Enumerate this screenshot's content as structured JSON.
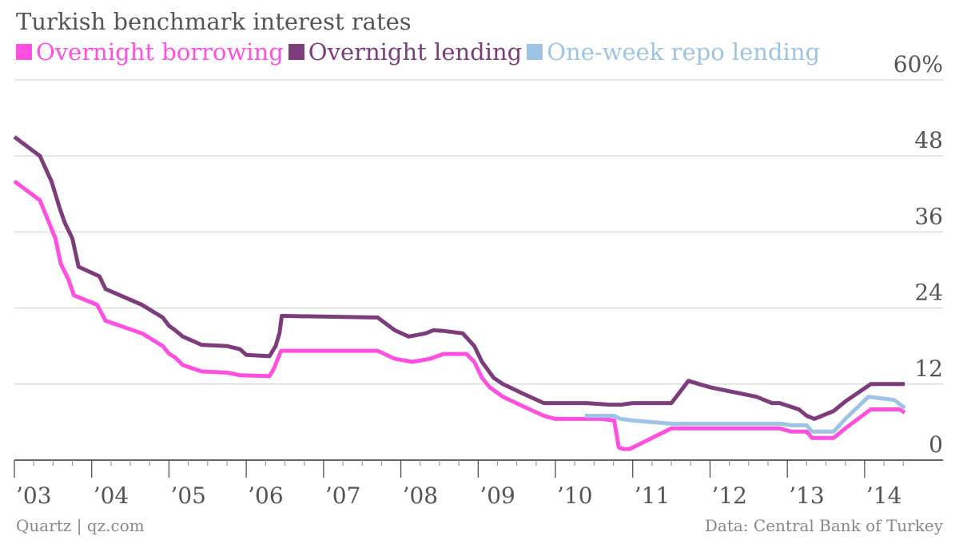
{
  "chart_data": {
    "type": "line",
    "title": "Turkish benchmark interest rates",
    "xlabel": "",
    "ylabel": "",
    "ylim": [
      0,
      60
    ],
    "xlim": [
      2003.0,
      2014.58
    ],
    "y_ticks": [
      {
        "value": 0,
        "label": "0"
      },
      {
        "value": 12,
        "label": "12"
      },
      {
        "value": 24,
        "label": "24"
      },
      {
        "value": 36,
        "label": "36"
      },
      {
        "value": 48,
        "label": "48"
      },
      {
        "value": 60,
        "label": "60%"
      }
    ],
    "x_ticks": [
      {
        "value": 2003,
        "label": "’03"
      },
      {
        "value": 2004,
        "label": "’04"
      },
      {
        "value": 2005,
        "label": "’05"
      },
      {
        "value": 2006,
        "label": "’06"
      },
      {
        "value": 2007,
        "label": "’07"
      },
      {
        "value": 2008,
        "label": "’08"
      },
      {
        "value": 2009,
        "label": "’09"
      },
      {
        "value": 2010,
        "label": "’10"
      },
      {
        "value": 2011,
        "label": "’11"
      },
      {
        "value": 2012,
        "label": "’12"
      },
      {
        "value": 2013,
        "label": "’13"
      },
      {
        "value": 2014,
        "label": "’14"
      }
    ],
    "grid": true,
    "legend_position": "top-left",
    "series": [
      {
        "name": "Overnight borrowing",
        "color": "#ff4fe1",
        "points": [
          [
            2003.0,
            44.0
          ],
          [
            2003.33,
            41.0
          ],
          [
            2003.53,
            35.0
          ],
          [
            2003.6,
            31.0
          ],
          [
            2003.7,
            28.5
          ],
          [
            2003.77,
            26.0
          ],
          [
            2004.07,
            24.5
          ],
          [
            2004.18,
            22.0
          ],
          [
            2004.65,
            20.0
          ],
          [
            2004.92,
            18.0
          ],
          [
            2005.0,
            16.8
          ],
          [
            2005.08,
            16.2
          ],
          [
            2005.18,
            15.0
          ],
          [
            2005.42,
            14.0
          ],
          [
            2005.75,
            13.8
          ],
          [
            2005.92,
            13.4
          ],
          [
            2006.3,
            13.25
          ],
          [
            2006.36,
            14.5
          ],
          [
            2006.45,
            17.25
          ],
          [
            2007.7,
            17.25
          ],
          [
            2007.92,
            16.0
          ],
          [
            2008.15,
            15.5
          ],
          [
            2008.38,
            16.0
          ],
          [
            2008.55,
            16.75
          ],
          [
            2008.85,
            16.75
          ],
          [
            2008.95,
            15.5
          ],
          [
            2009.05,
            13.0
          ],
          [
            2009.15,
            11.5
          ],
          [
            2009.32,
            10.0
          ],
          [
            2009.58,
            8.5
          ],
          [
            2009.85,
            7.0
          ],
          [
            2010.0,
            6.5
          ],
          [
            2010.6,
            6.5
          ],
          [
            2010.76,
            6.25
          ],
          [
            2010.82,
            2.0
          ],
          [
            2010.88,
            1.75
          ],
          [
            2010.96,
            1.75
          ],
          [
            2011.5,
            5.0
          ],
          [
            2012.0,
            5.0
          ],
          [
            2012.5,
            5.0
          ],
          [
            2012.9,
            5.0
          ],
          [
            2013.05,
            4.5
          ],
          [
            2013.25,
            4.5
          ],
          [
            2013.32,
            3.5
          ],
          [
            2013.6,
            3.5
          ],
          [
            2013.75,
            5.0
          ],
          [
            2014.08,
            8.0
          ],
          [
            2014.45,
            8.0
          ],
          [
            2014.52,
            7.5
          ]
        ]
      },
      {
        "name": "Overnight lending",
        "color": "#7d3c7c",
        "points": [
          [
            2003.0,
            51.0
          ],
          [
            2003.33,
            48.0
          ],
          [
            2003.48,
            44.0
          ],
          [
            2003.58,
            40.0
          ],
          [
            2003.65,
            37.5
          ],
          [
            2003.75,
            35.0
          ],
          [
            2003.83,
            30.5
          ],
          [
            2004.1,
            29.0
          ],
          [
            2004.18,
            27.0
          ],
          [
            2004.65,
            24.5
          ],
          [
            2004.92,
            22.5
          ],
          [
            2005.0,
            21.2
          ],
          [
            2005.08,
            20.5
          ],
          [
            2005.18,
            19.5
          ],
          [
            2005.42,
            18.2
          ],
          [
            2005.75,
            18.0
          ],
          [
            2005.92,
            17.5
          ],
          [
            2006.0,
            16.6
          ],
          [
            2006.3,
            16.4
          ],
          [
            2006.38,
            18.0
          ],
          [
            2006.43,
            20.0
          ],
          [
            2006.46,
            22.75
          ],
          [
            2006.5,
            22.75
          ],
          [
            2007.7,
            22.5
          ],
          [
            2007.92,
            20.5
          ],
          [
            2008.1,
            19.5
          ],
          [
            2008.32,
            20.0
          ],
          [
            2008.42,
            20.5
          ],
          [
            2008.55,
            20.4
          ],
          [
            2008.8,
            20.0
          ],
          [
            2008.95,
            18.0
          ],
          [
            2009.05,
            15.5
          ],
          [
            2009.2,
            13.0
          ],
          [
            2009.32,
            12.0
          ],
          [
            2009.58,
            10.5
          ],
          [
            2009.85,
            9.0
          ],
          [
            2010.0,
            9.0
          ],
          [
            2010.4,
            9.0
          ],
          [
            2010.7,
            8.75
          ],
          [
            2010.85,
            8.75
          ],
          [
            2011.0,
            9.0
          ],
          [
            2011.5,
            9.0
          ],
          [
            2011.72,
            12.5
          ],
          [
            2012.0,
            11.5
          ],
          [
            2012.6,
            10.0
          ],
          [
            2012.8,
            9.0
          ],
          [
            2012.9,
            9.0
          ],
          [
            2013.15,
            8.0
          ],
          [
            2013.25,
            7.0
          ],
          [
            2013.35,
            6.5
          ],
          [
            2013.6,
            7.75
          ],
          [
            2013.75,
            9.25
          ],
          [
            2014.08,
            12.0
          ],
          [
            2014.52,
            12.0
          ]
        ]
      },
      {
        "name": "One-week repo lending",
        "color": "#9ec4e5",
        "points": [
          [
            2010.38,
            7.0
          ],
          [
            2010.75,
            7.0
          ],
          [
            2010.85,
            6.5
          ],
          [
            2011.0,
            6.25
          ],
          [
            2011.5,
            5.75
          ],
          [
            2012.0,
            5.75
          ],
          [
            2012.5,
            5.75
          ],
          [
            2012.92,
            5.75
          ],
          [
            2013.05,
            5.5
          ],
          [
            2013.25,
            5.5
          ],
          [
            2013.32,
            4.5
          ],
          [
            2013.6,
            4.5
          ],
          [
            2013.75,
            6.5
          ],
          [
            2014.05,
            10.0
          ],
          [
            2014.38,
            9.5
          ],
          [
            2014.52,
            8.25
          ]
        ]
      }
    ],
    "source": "Data: Central Bank of Turkey",
    "credit": "Quartz | qz.com"
  }
}
